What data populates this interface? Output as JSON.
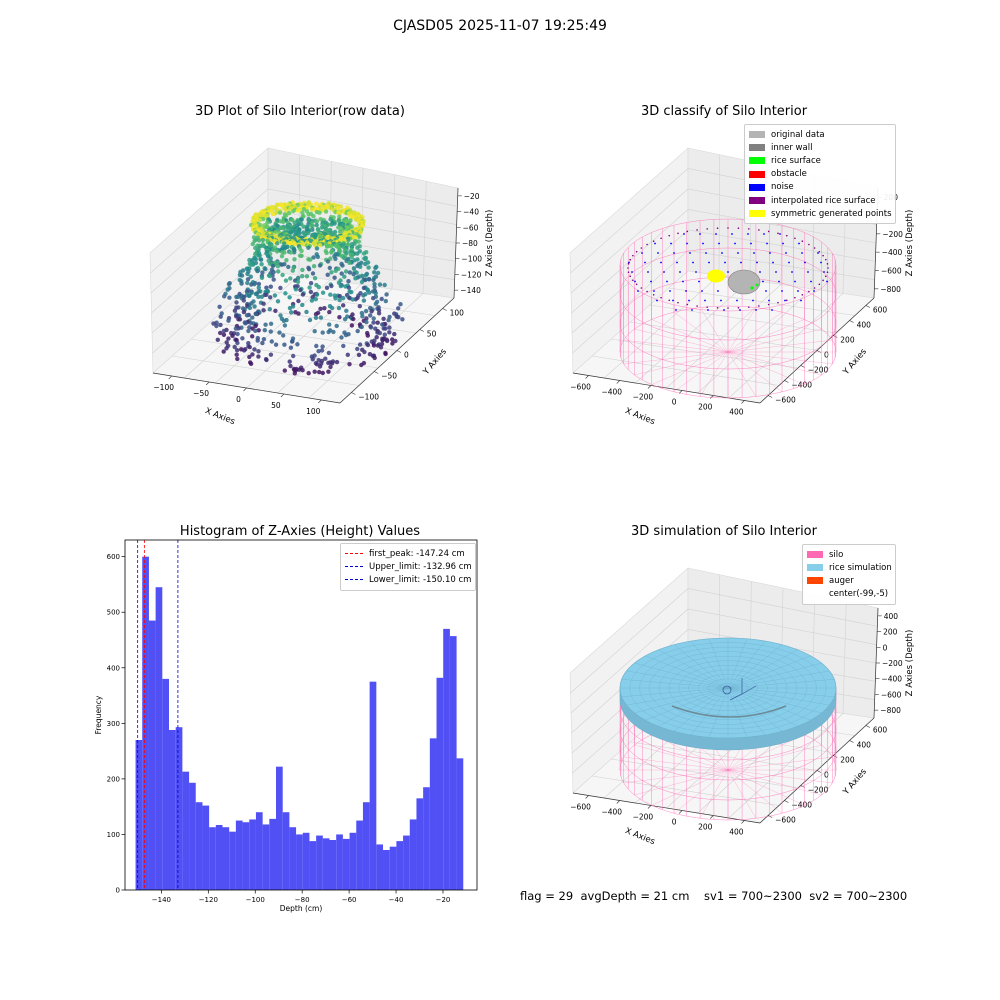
{
  "figure": {
    "suptitle": "CJASD05 2025-11-07 19:25:49",
    "status_line": "flag = 29  avgDepth = 21 cm    sv1 = 700~2300  sv2 = 700~2300"
  },
  "colors": {
    "histogram_bar": "#5050f5",
    "first_peak_line": "#ff0000",
    "limit_lines": "#0000cc",
    "silo_wire": "#ff69b4",
    "rice_simulation": "#87ceeb",
    "auger": "#ff4500",
    "original_data": "#b4b4b4",
    "inner_wall": "#808080",
    "rice_surface": "#00ff00",
    "obstacle": "#ff0000",
    "noise": "#0000ff",
    "interpolated_rice_surface": "#800080",
    "symmetric_generated_points": "#ffff00"
  },
  "chart_data": [
    {
      "type": "scatter",
      "projection": "3d",
      "title": "3D Plot of Silo Interior(row data)",
      "xlabel": "X Axies",
      "ylabel": "Y Axies",
      "zlabel": "Z Axies (Depth)",
      "xticks": [
        "−100",
        "−50",
        "0",
        "50",
        "100"
      ],
      "yticks": [
        "−100",
        "−50",
        "0",
        "50",
        "100"
      ],
      "zticks": [
        "−20",
        "−40",
        "−60",
        "−80",
        "−100",
        "−120",
        "−140"
      ],
      "xlim": [
        -120,
        120
      ],
      "ylim": [
        -120,
        120
      ],
      "zlim": [
        -155,
        -5
      ],
      "colormap": "viridis",
      "grid": true
    },
    {
      "type": "scatter",
      "projection": "3d",
      "title": "3D classify of Silo Interior",
      "xlabel": "X Axies",
      "ylabel": "Y Axies",
      "zlabel": "Z Axies (Depth)",
      "xticks": [
        "−600",
        "−400",
        "−200",
        "0",
        "200",
        "400"
      ],
      "yticks": [
        "−600",
        "−400",
        "−200",
        "0",
        "200",
        "400",
        "600"
      ],
      "zticks": [
        "200",
        "0",
        "−200",
        "−400",
        "−600",
        "−800"
      ],
      "grid": true,
      "legend_position": "top-right",
      "legend": [
        {
          "label": "original data",
          "color": "#b4b4b4"
        },
        {
          "label": "inner wall",
          "color": "#808080"
        },
        {
          "label": "rice surface",
          "color": "#00ff00"
        },
        {
          "label": "obstacle",
          "color": "#ff0000"
        },
        {
          "label": "noise",
          "color": "#0000ff"
        },
        {
          "label": "interpolated rice surface",
          "color": "#800080"
        },
        {
          "label": "symmetric generated points",
          "color": "#ffff00"
        }
      ]
    },
    {
      "type": "bar",
      "title": "Histogram of Z-Axies (Height) Values",
      "xlabel": "Depth (cm)",
      "ylabel": "Frequency",
      "xlim": [
        -155.5,
        -5.5
      ],
      "ylim": [
        0,
        630
      ],
      "xticks": [
        -140,
        -120,
        -100,
        -80,
        -60,
        -40,
        -20
      ],
      "xtick_labels": [
        "−140",
        "−120",
        "−100",
        "−80",
        "−60",
        "−40",
        "−20"
      ],
      "yticks": [
        0,
        100,
        200,
        300,
        400,
        500,
        600
      ],
      "bin_start": -151.0,
      "bin_width": 2.85,
      "values": [
        270,
        600,
        485,
        545,
        380,
        288,
        293,
        213,
        193,
        158,
        152,
        113,
        117,
        113,
        105,
        125,
        122,
        127,
        140,
        118,
        128,
        222,
        140,
        113,
        100,
        103,
        88,
        98,
        93,
        90,
        100,
        92,
        103,
        125,
        158,
        375,
        82,
        72,
        78,
        88,
        98,
        127,
        165,
        185,
        273,
        382,
        470,
        457,
        237
      ],
      "vlines": [
        {
          "label": "first_peak: -147.24 cm",
          "x": -147.24,
          "color": "#ff0000"
        },
        {
          "label": "Upper_limit: -132.96 cm",
          "x": -132.96,
          "color": "#0000cc"
        },
        {
          "label": "Lower_limit: -150.10 cm",
          "x": -150.1,
          "color": "#0000cc"
        }
      ],
      "legend_position": "top-right",
      "grid": false
    },
    {
      "type": "area",
      "projection": "3d",
      "title": "3D simulation of Silo Interior",
      "xlabel": "X Axies",
      "ylabel": "Y Axies",
      "zlabel": "Z Axies (Depth)",
      "xticks": [
        "−600",
        "−400",
        "−200",
        "0",
        "200",
        "400"
      ],
      "yticks": [
        "−600",
        "−400",
        "−200",
        "0",
        "200",
        "400",
        "600"
      ],
      "zticks": [
        "400",
        "200",
        "0",
        "−200",
        "−400",
        "−600",
        "−800"
      ],
      "grid": true,
      "legend_position": "top-right",
      "legend": [
        {
          "label": "silo",
          "color": "#ff69b4"
        },
        {
          "label": "rice simulation",
          "color": "#87ceeb"
        },
        {
          "label": "auger",
          "color": "#ff4500"
        },
        {
          "label": "center(-99,-5)",
          "color": "none"
        }
      ]
    }
  ]
}
